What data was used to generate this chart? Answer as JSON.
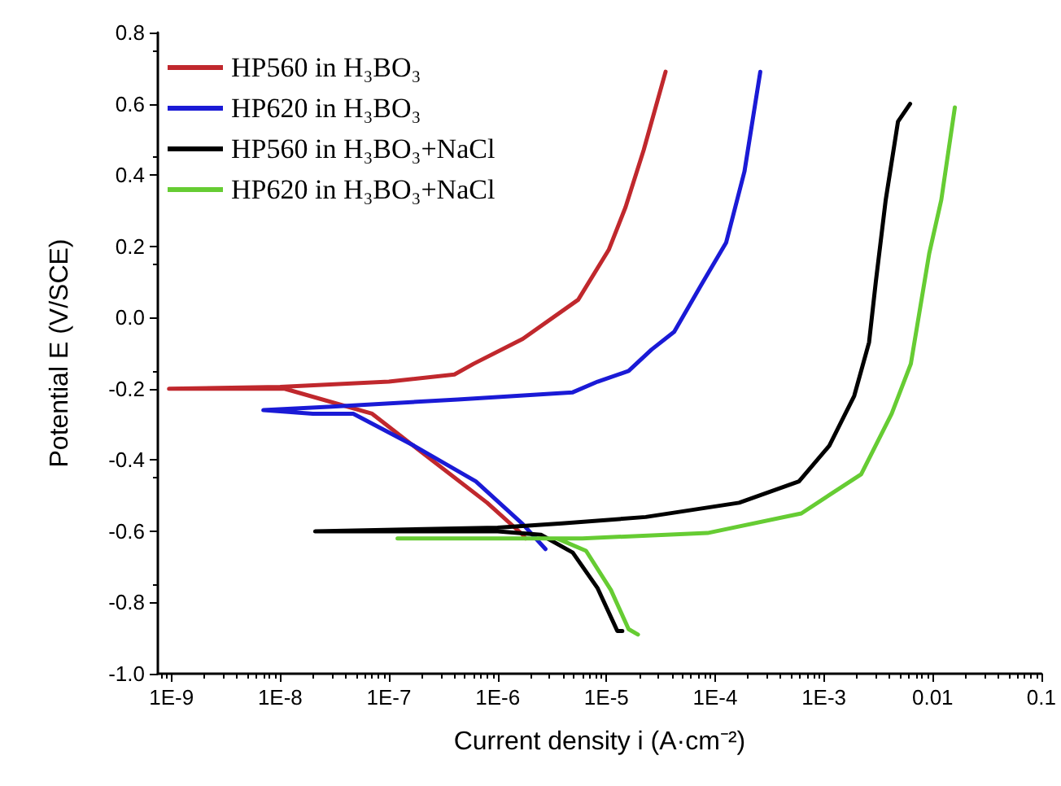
{
  "chart_data": {
    "type": "line",
    "xlabel": "Current density i (A·cm⁻²)",
    "ylabel": "Potential E (V/SCE)",
    "log": "x",
    "grid": false,
    "legend": "top left",
    "marker": "none",
    "line_style": "solid",
    "xlim": [
      7.5e-10,
      0.1
    ],
    "ylim": [
      -1.0,
      0.8
    ],
    "xticks": [
      {
        "value": 1e-09,
        "label": "1E-9"
      },
      {
        "value": 1e-08,
        "label": "1E-8"
      },
      {
        "value": 1e-07,
        "label": "1E-7"
      },
      {
        "value": 1e-06,
        "label": "1E-6"
      },
      {
        "value": 1e-05,
        "label": "1E-5"
      },
      {
        "value": 0.0001,
        "label": "1E-4"
      },
      {
        "value": 0.001,
        "label": "1E-3"
      },
      0.01,
      0.1
    ],
    "yticks": [
      {
        "value": -1.0,
        "label": "-1.0"
      },
      -0.8,
      -0.6,
      -0.4,
      -0.2,
      {
        "value": 0,
        "label": "0.0"
      },
      0.2,
      0.4,
      0.6,
      0.8
    ],
    "series": [
      {
        "name": "HP560 in H₃BO₃",
        "color": "#c0282d",
        "x": [
          1.8e-06,
          1.7e-06,
          8e-07,
          2.6e-07,
          7e-08,
          1.1e-08,
          9.5e-10,
          1e-08,
          1e-07,
          4e-07,
          6e-07,
          1.7e-06,
          5.5e-06,
          1.05e-05,
          1.5e-05,
          2.2e-05,
          3.5e-05
        ],
        "values": [
          -0.62,
          -0.61,
          -0.52,
          -0.405,
          -0.27,
          -0.2,
          -0.2,
          -0.195,
          -0.18,
          -0.16,
          -0.13,
          -0.06,
          0.05,
          0.19,
          0.31,
          0.47,
          0.69
        ]
      },
      {
        "name": "HP620 in H₃BO₃",
        "color": "#1a1ad6",
        "x": [
          2.75e-06,
          1.7e-06,
          6.3e-07,
          1.7e-07,
          4.7e-08,
          2e-08,
          7e-09,
          3e-08,
          4.3e-07,
          4.9e-06,
          8.3e-06,
          1.6e-05,
          2.6e-05,
          4.2e-05,
          7.4e-05,
          0.000126,
          0.000186,
          0.00026
        ],
        "values": [
          -0.65,
          -0.58,
          -0.46,
          -0.36,
          -0.27,
          -0.27,
          -0.26,
          -0.25,
          -0.23,
          -0.21,
          -0.18,
          -0.15,
          -0.09,
          -0.04,
          0.09,
          0.21,
          0.41,
          0.69
        ]
      },
      {
        "name": "HP560 in H₃BO₃+NaCl",
        "color": "#000000",
        "x": [
          1.4e-05,
          1.26e-05,
          8.3e-06,
          4.9e-06,
          2.5e-06,
          1e-06,
          2.1e-08,
          1e-06,
          3.9e-06,
          2.3e-05,
          0.000166,
          0.00059,
          0.00112,
          0.0019,
          0.0026,
          0.003,
          0.0037,
          0.0048,
          0.0062
        ],
        "values": [
          -0.88,
          -0.88,
          -0.76,
          -0.66,
          -0.61,
          -0.6,
          -0.6,
          -0.59,
          -0.578,
          -0.56,
          -0.52,
          -0.46,
          -0.36,
          -0.22,
          -0.07,
          0.1,
          0.33,
          0.55,
          0.6
        ]
      },
      {
        "name": "HP620 in H₃BO₃+NaCl",
        "color": "#66cc33",
        "x": [
          1.95e-05,
          1.6e-05,
          1.1e-05,
          6.5e-06,
          3.5e-06,
          1.2e-07,
          6e-06,
          8.5e-05,
          0.00062,
          0.0022,
          0.0042,
          0.0063,
          0.0093,
          0.012,
          0.016
        ],
        "values": [
          -0.89,
          -0.875,
          -0.765,
          -0.655,
          -0.62,
          -0.62,
          -0.62,
          -0.605,
          -0.55,
          -0.44,
          -0.27,
          -0.13,
          0.18,
          0.33,
          0.59
        ]
      }
    ]
  }
}
